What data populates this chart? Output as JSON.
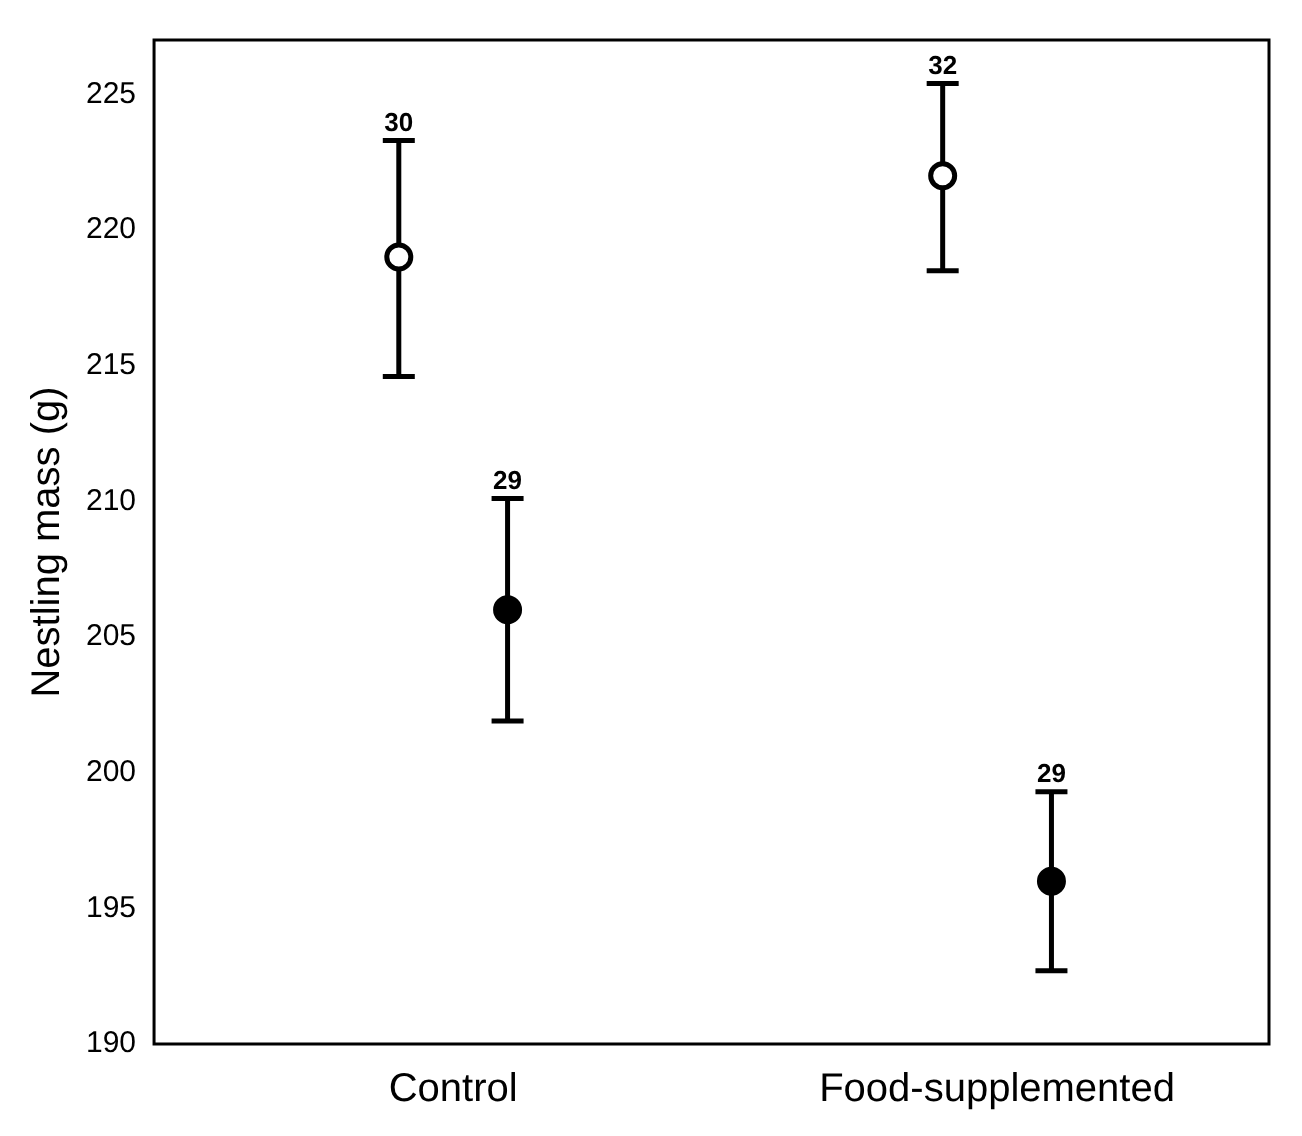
{
  "chart_data": {
    "type": "scatter",
    "ylabel": "Nestling mass (g)",
    "categories": [
      "Control",
      "Food-supplemented"
    ],
    "series": [
      {
        "color": "#ffffff",
        "values": [
          219,
          222
        ],
        "errors": [
          [
            214.6,
            223.3
          ],
          [
            218.5,
            225.4
          ]
        ]
      },
      {
        "color": "#000000",
        "values": [
          206,
          196
        ],
        "errors": [
          [
            201.9,
            210.1
          ],
          [
            192.7,
            199.3
          ]
        ]
      }
    ],
    "ylim": [
      190,
      227
    ],
    "yticks": [
      190,
      195,
      200,
      205,
      210,
      215,
      220,
      225
    ],
    "grid": false,
    "legend": false,
    "marker": "circle",
    "annotations": [
      "30",
      "29",
      "32",
      "29"
    ]
  }
}
